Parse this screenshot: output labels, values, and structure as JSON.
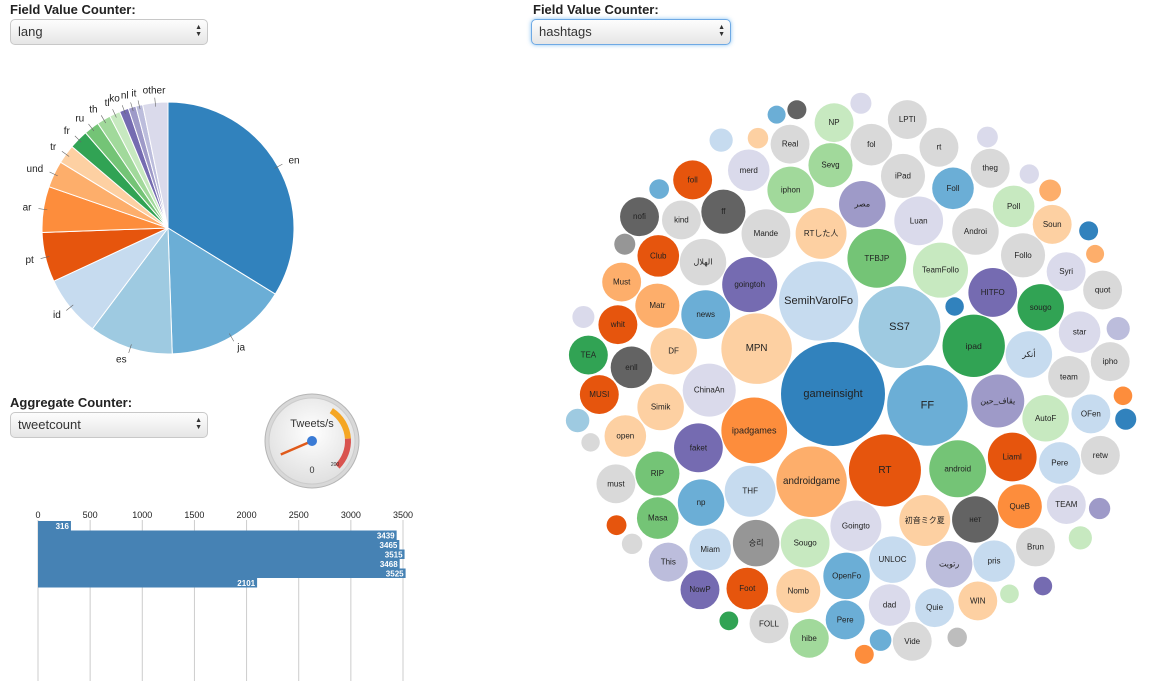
{
  "lang_panel": {
    "label": "Field Value Counter:",
    "selected": "lang"
  },
  "hashtags_panel": {
    "label": "Field Value Counter:",
    "selected": "hashtags"
  },
  "aggregate_panel": {
    "label": "Aggregate Counter:",
    "selected": "tweetcount"
  },
  "gauge": {
    "title": "Tweets/s",
    "min_label": "0",
    "max_label": "200",
    "value": 0.72,
    "colors": {
      "warning": "#f5a623",
      "danger": "#d9534f",
      "needle": "#e05a1a",
      "hub": "#3a7bd5"
    }
  },
  "chart_data": [
    {
      "type": "pie",
      "field": "lang",
      "slices": [
        {
          "label": "en",
          "value": 34.5,
          "color": "#3182bd"
        },
        {
          "label": "ja",
          "value": 16.0,
          "color": "#6baed6"
        },
        {
          "label": "es",
          "value": 11.0,
          "color": "#9ecae1"
        },
        {
          "label": "id",
          "value": 8.0,
          "color": "#c6dbef"
        },
        {
          "label": "pt",
          "value": 6.5,
          "color": "#e6550d"
        },
        {
          "label": "ar",
          "value": 6.0,
          "color": "#fd8d3c"
        },
        {
          "label": "und",
          "value": 3.5,
          "color": "#fdae6b"
        },
        {
          "label": "tr",
          "value": 2.5,
          "color": "#fdd0a2"
        },
        {
          "label": "fr",
          "value": 2.5,
          "color": "#31a354"
        },
        {
          "label": "ru",
          "value": 2.0,
          "color": "#74c476"
        },
        {
          "label": "th",
          "value": 1.8,
          "color": "#a1d99b"
        },
        {
          "label": "tl",
          "value": 1.4,
          "color": "#c7e9c0"
        },
        {
          "label": "ko",
          "value": 1.2,
          "color": "#756bb1"
        },
        {
          "label": "nl",
          "value": 1.0,
          "color": "#9e9ac8"
        },
        {
          "label": "it",
          "value": 0.9,
          "color": "#bcbddc"
        },
        {
          "label": "other",
          "value": 3.3,
          "color": "#dadaeb"
        }
      ]
    },
    {
      "type": "bar",
      "field": "tweetcount",
      "orientation": "horizontal",
      "xlim": [
        0,
        3500
      ],
      "ticks": [
        0,
        500,
        1000,
        1500,
        2000,
        2500,
        3000,
        3500
      ],
      "values": [
        316,
        3439,
        3465,
        3515,
        3468,
        3525,
        2101
      ],
      "color": "#4682b4"
    },
    {
      "type": "bubble",
      "field": "hashtags",
      "bubbles": [
        {
          "label": "gameinsight",
          "value": 100,
          "color": "#3182bd"
        },
        {
          "label": "SS7",
          "value": 62,
          "color": "#9ecae1"
        },
        {
          "label": "FF",
          "value": 60,
          "color": "#6baed6"
        },
        {
          "label": "SemihVarolFol",
          "value": 58,
          "color": "#c6dbef"
        },
        {
          "label": "RT",
          "value": 48,
          "color": "#e6550d"
        },
        {
          "label": "MPN",
          "value": 46,
          "color": "#fdd0a2"
        },
        {
          "label": "androidgame",
          "value": 46,
          "color": "#fdae6b"
        },
        {
          "label": "ipadgames",
          "value": 40,
          "color": "#fd8d3c"
        },
        {
          "label": "ipad",
          "value": 36,
          "color": "#31a354"
        },
        {
          "label": "TFBJP",
          "value": 32,
          "color": "#74c476"
        },
        {
          "label": "android",
          "value": 30,
          "color": "#74c476"
        },
        {
          "label": "goingtoh",
          "value": 28,
          "color": "#756bb1"
        },
        {
          "label": "TeamFollo",
          "value": 28,
          "color": "#c7e9c0"
        },
        {
          "label": "ChinaAn",
          "value": 26,
          "color": "#dadaeb"
        },
        {
          "label": "ﻳﻘﺎﻑ_ﺣﻴﻦ",
          "value": 26,
          "color": "#9e9ac8"
        },
        {
          "label": "Goingto",
          "value": 24,
          "color": "#dadaeb"
        },
        {
          "label": "THF",
          "value": 24,
          "color": "#c6dbef"
        },
        {
          "label": "RTした人",
          "value": 24,
          "color": "#fdd0a2"
        },
        {
          "label": "初音ミク夏",
          "value": 24,
          "color": "#fdd0a2"
        },
        {
          "label": "news",
          "value": 22,
          "color": "#6baed6"
        },
        {
          "label": "HITFO",
          "value": 22,
          "color": "#756bb1"
        },
        {
          "label": "Sougo",
          "value": 22,
          "color": "#c7e9c0"
        },
        {
          "label": "faket",
          "value": 22,
          "color": "#756bb1"
        },
        {
          "label": "Mande",
          "value": 22,
          "color": "#d9d9d9"
        },
        {
          "label": "Luan",
          "value": 22,
          "color": "#dadaeb"
        },
        {
          "label": "Liaml",
          "value": 22,
          "color": "#e6550d"
        },
        {
          "label": "ﻣﺼﺮ",
          "value": 20,
          "color": "#9e9ac8"
        },
        {
          "label": "ﺃﻧﻜﺮ",
          "value": 20,
          "color": "#c6dbef"
        },
        {
          "label": "UNLOC",
          "value": 20,
          "color": "#c6dbef"
        },
        {
          "label": "DF",
          "value": 20,
          "color": "#fdd0a2"
        },
        {
          "label": "нет",
          "value": 20,
          "color": "#636363"
        },
        {
          "label": "승리",
          "value": 20,
          "color": "#969696"
        },
        {
          "label": "ﺍﻟﻬﻼﻝ",
          "value": 20,
          "color": "#d9d9d9"
        },
        {
          "label": "OpenFo",
          "value": 20,
          "color": "#6baed6"
        },
        {
          "label": "np",
          "value": 20,
          "color": "#6baed6"
        },
        {
          "label": "Simik",
          "value": 20,
          "color": "#fdd0a2"
        },
        {
          "label": "Androi",
          "value": 20,
          "color": "#d9d9d9"
        },
        {
          "label": "AutoF",
          "value": 20,
          "color": "#c7e9c0"
        },
        {
          "label": "iphon",
          "value": 20,
          "color": "#a1d99b"
        },
        {
          "label": "sougo",
          "value": 20,
          "color": "#31a354"
        },
        {
          "label": "ﺭﺗﻮﻳﺖ",
          "value": 20,
          "color": "#bcbddc"
        },
        {
          "label": "QueB",
          "value": 18,
          "color": "#fd8d3c"
        },
        {
          "label": "Matr",
          "value": 18,
          "color": "#fdae6b"
        },
        {
          "label": "iPad",
          "value": 18,
          "color": "#d9d9d9"
        },
        {
          "label": "Follo",
          "value": 18,
          "color": "#d9d9d9"
        },
        {
          "label": "ff",
          "value": 18,
          "color": "#636363"
        },
        {
          "label": "Nomb",
          "value": 18,
          "color": "#fdd0a2"
        },
        {
          "label": "RIP",
          "value": 18,
          "color": "#74c476"
        },
        {
          "label": "Sevg",
          "value": 18,
          "color": "#a1d99b"
        },
        {
          "label": "team",
          "value": 16,
          "color": "#d9d9d9"
        },
        {
          "label": "Foll",
          "value": 16,
          "color": "#6baed6"
        },
        {
          "label": "Miam",
          "value": 16,
          "color": "#c6dbef"
        },
        {
          "label": "Pere",
          "value": 16,
          "color": "#c6dbef"
        },
        {
          "label": "enll",
          "value": 16,
          "color": "#636363"
        },
        {
          "label": "dad",
          "value": 16,
          "color": "#dadaeb"
        },
        {
          "label": "pris",
          "value": 16,
          "color": "#c6dbef"
        },
        {
          "label": "star",
          "value": 16,
          "color": "#dadaeb"
        },
        {
          "label": "Foot",
          "value": 16,
          "color": "#e6550d"
        },
        {
          "label": "Club",
          "value": 16,
          "color": "#e6550d"
        },
        {
          "label": "open",
          "value": 16,
          "color": "#fdd0a2"
        },
        {
          "label": "merd",
          "value": 16,
          "color": "#dadaeb"
        },
        {
          "label": "Masa",
          "value": 16,
          "color": "#74c476"
        },
        {
          "label": "fol",
          "value": 16,
          "color": "#d9d9d9"
        },
        {
          "label": "Poll",
          "value": 16,
          "color": "#c7e9c0"
        },
        {
          "label": "kind",
          "value": 14,
          "color": "#d9d9d9"
        },
        {
          "label": "Pere",
          "value": 14,
          "color": "#6baed6"
        },
        {
          "label": "OFen",
          "value": 14,
          "color": "#c6dbef"
        },
        {
          "label": "Quie",
          "value": 14,
          "color": "#c6dbef"
        },
        {
          "label": "Syri",
          "value": 14,
          "color": "#dadaeb"
        },
        {
          "label": "whit",
          "value": 14,
          "color": "#e6550d"
        },
        {
          "label": "Brun",
          "value": 14,
          "color": "#d9d9d9"
        },
        {
          "label": "Real",
          "value": 14,
          "color": "#d9d9d9"
        },
        {
          "label": "TEAM",
          "value": 14,
          "color": "#dadaeb"
        },
        {
          "label": "rt",
          "value": 14,
          "color": "#d9d9d9"
        },
        {
          "label": "Must",
          "value": 14,
          "color": "#fdae6b"
        },
        {
          "label": "WIN",
          "value": 14,
          "color": "#fdd0a2"
        },
        {
          "label": "MUSI",
          "value": 14,
          "color": "#e6550d"
        },
        {
          "label": "theg",
          "value": 14,
          "color": "#d9d9d9"
        },
        {
          "label": "Soun",
          "value": 14,
          "color": "#fdd0a2"
        },
        {
          "label": "FOLL",
          "value": 14,
          "color": "#d9d9d9"
        },
        {
          "label": "NowP",
          "value": 14,
          "color": "#756bb1"
        },
        {
          "label": "This",
          "value": 14,
          "color": "#bcbddc"
        },
        {
          "label": "must",
          "value": 14,
          "color": "#d9d9d9"
        },
        {
          "label": "foll",
          "value": 14,
          "color": "#e6550d"
        },
        {
          "label": "ipho",
          "value": 14,
          "color": "#d9d9d9"
        },
        {
          "label": "retw",
          "value": 14,
          "color": "#d9d9d9"
        },
        {
          "label": "NP",
          "value": 14,
          "color": "#c7e9c0"
        },
        {
          "label": "hibe",
          "value": 14,
          "color": "#a1d99b"
        },
        {
          "label": "TEA",
          "value": 14,
          "color": "#31a354"
        },
        {
          "label": "quot",
          "value": 14,
          "color": "#d9d9d9"
        },
        {
          "label": "Vide",
          "value": 14,
          "color": "#d9d9d9"
        },
        {
          "label": "LPTI",
          "value": 14,
          "color": "#d9d9d9"
        },
        {
          "label": "nofi",
          "value": 14,
          "color": "#636363"
        }
      ]
    }
  ]
}
